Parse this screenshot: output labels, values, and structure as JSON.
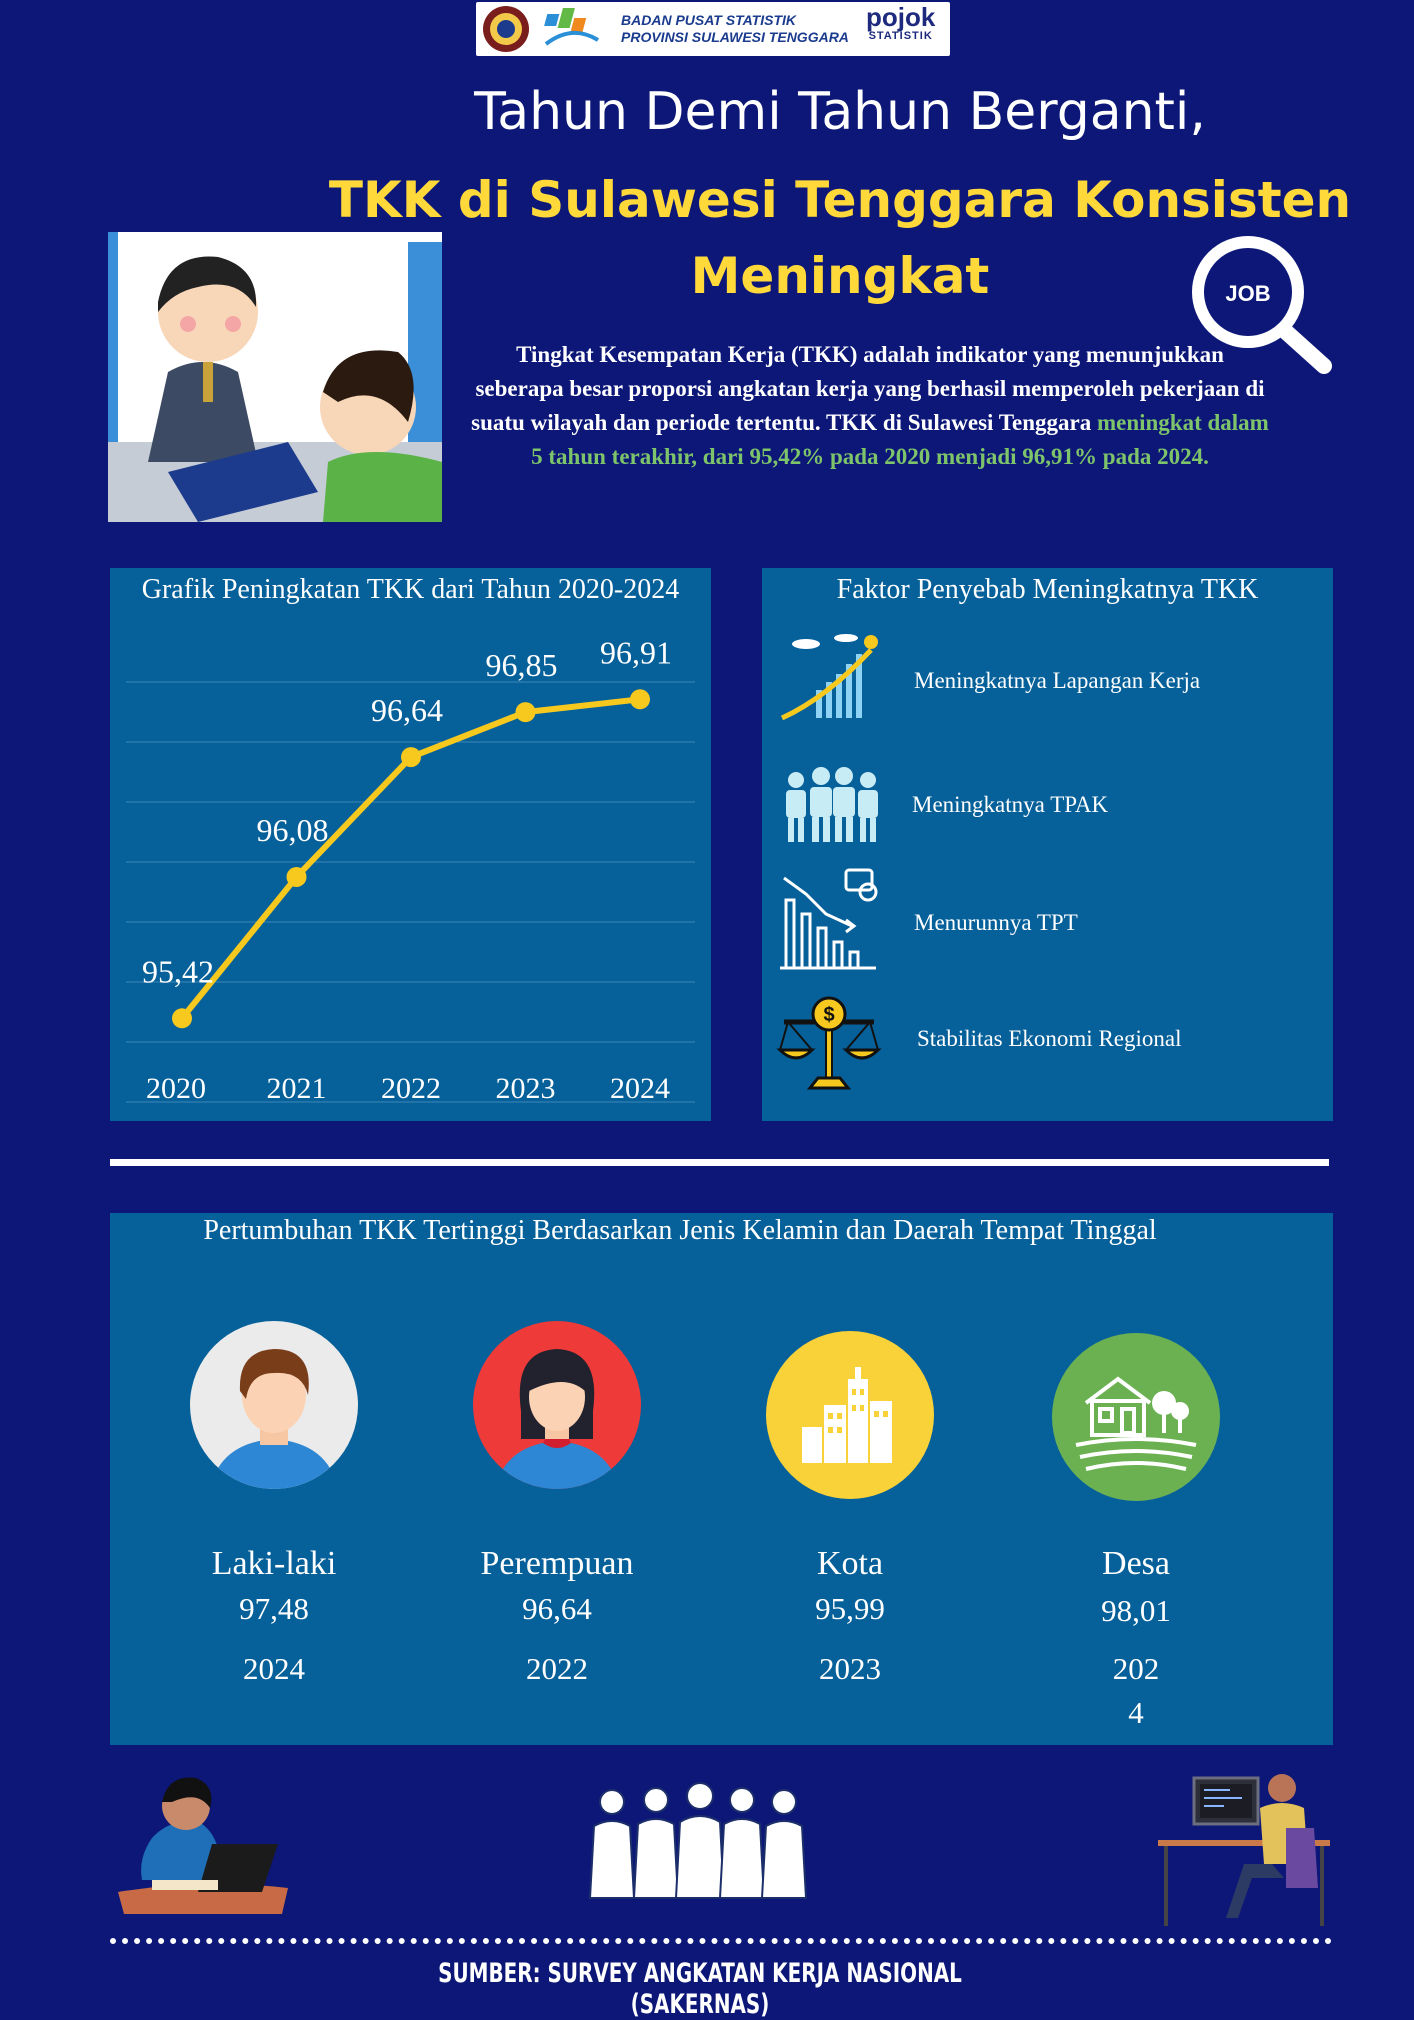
{
  "header": {
    "org_line1": "BADAN PUSAT STATISTIK",
    "org_line2": "PROVINSI SULAWESI TENGGARA",
    "brand_top": "pojok",
    "brand_bottom": "STATISTIK",
    "job_badge": "JOB"
  },
  "title": {
    "line1": "Tahun Demi Tahun Berganti,",
    "line2": "TKK di Sulawesi Tenggara Konsisten",
    "line3": "Meningkat"
  },
  "intro": {
    "text_plain": "Tingkat Kesempatan Kerja (TKK) adalah indikator yang menunjukkan seberapa besar proporsi angkatan kerja yang berhasil memperoleh pekerjaan di suatu wilayah dan periode tertentu. TKK di Sulawesi Tenggara",
    "text_highlight": "meningkat dalam 5 tahun terakhir, dari 95,42% pada 2020 menjadi 96,91% pada 2024."
  },
  "chart_data": {
    "type": "line",
    "title": "Grafik Peningkatan TKK dari Tahun 2020-2024",
    "categories": [
      "2020",
      "2021",
      "2022",
      "2023",
      "2024"
    ],
    "values": [
      95.42,
      96.08,
      96.64,
      96.85,
      96.91
    ],
    "data_labels": [
      "95,42",
      "96,08",
      "96,64",
      "96,85",
      "96,91"
    ],
    "xlabel": "",
    "ylabel": "",
    "ylim": [
      95.3,
      97.0
    ],
    "grid": true,
    "line_color": "#f7c81e"
  },
  "factors": {
    "title": "Faktor Penyebab Meningkatnya TKK",
    "items": [
      {
        "label": "Meningkatnya Lapangan Kerja",
        "icon": "growth-chart-icon"
      },
      {
        "label": "Meningkatnya TPAK",
        "icon": "workers-group-icon"
      },
      {
        "label": "Menurunnya TPT",
        "icon": "declining-chart-icon"
      },
      {
        "label": "Stabilitas Ekonomi Regional",
        "icon": "balance-scale-icon"
      }
    ]
  },
  "growth": {
    "title": "Pertumbuhan TKK Tertinggi Berdasarkan Jenis Kelamin dan Daerah Tempat Tinggal",
    "items": [
      {
        "name": "Laki-laki",
        "value": "97,48",
        "year": "2024",
        "icon": "man-avatar-icon",
        "color": "#e8e8e8"
      },
      {
        "name": "Perempuan",
        "value": "96,64",
        "year": "2022",
        "icon": "woman-avatar-icon",
        "color": "#ef3a3a"
      },
      {
        "name": "Kota",
        "value": "95,99",
        "year": "2023",
        "icon": "city-buildings-icon",
        "color": "#f9d23a"
      },
      {
        "name": "Desa",
        "value": "98,01",
        "year_line1": "202",
        "year_line2": "4",
        "icon": "village-house-icon",
        "color": "#6bb152"
      }
    ]
  },
  "footer": {
    "source": "SUMBER: SURVEY ANGKATAN KERJA NASIONAL (SAKERNAS)"
  },
  "colors": {
    "background": "#0c1778",
    "panel": "#066099",
    "accent_yellow": "#ffd83a",
    "highlight_green": "#7ec46a"
  }
}
